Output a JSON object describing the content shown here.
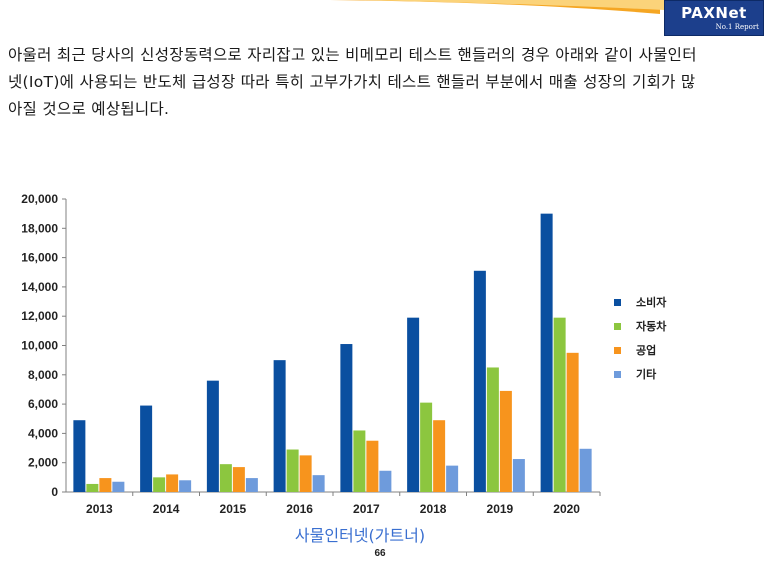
{
  "header": {
    "logo_text": "PAXNet",
    "logo_subtext": "No.1 Report"
  },
  "description": "아울러 최근 당사의 신성장동력으로 자리잡고 있는 비메모리 테스트 핸들러의 경우 아래와 같이 사물인터넷(IoT)에 사용되는 반도체 급성장 따라 특히 고부가가치 테스트 핸들러 부분에서 매출 성장의 기회가 많아질 것으로 예상됩니다.",
  "caption": "사물인터넷(가트너)",
  "page_number": "66",
  "colors": {
    "consumer": "#0a4fa0",
    "auto": "#8cc63f",
    "industry": "#f7941d",
    "other": "#6e9bdc",
    "header_accent": "#f5a623",
    "logo_bg": "#1c3f8c"
  },
  "chart_data": {
    "type": "bar",
    "title": "",
    "xlabel": "",
    "ylabel": "",
    "categories": [
      "2013",
      "2014",
      "2015",
      "2016",
      "2017",
      "2018",
      "2019",
      "2020"
    ],
    "series": [
      {
        "name": "소비자",
        "values": [
          4900,
          5900,
          7600,
          9000,
          10100,
          11900,
          15100,
          19000
        ]
      },
      {
        "name": "자동차",
        "values": [
          550,
          1000,
          1900,
          2900,
          4200,
          6100,
          8500,
          11900
        ]
      },
      {
        "name": "공업",
        "values": [
          950,
          1200,
          1700,
          2500,
          3500,
          4900,
          6900,
          9500
        ]
      },
      {
        "name": "기타",
        "values": [
          700,
          800,
          950,
          1150,
          1450,
          1800,
          2250,
          2950
        ]
      }
    ],
    "ylim": [
      0,
      20000
    ],
    "yticks": [
      "0",
      "2,000",
      "4,000",
      "6,000",
      "8,000",
      "10,000",
      "12,000",
      "14,000",
      "16,000",
      "18,000",
      "20,000"
    ],
    "legend_position": "right",
    "grid": false
  }
}
